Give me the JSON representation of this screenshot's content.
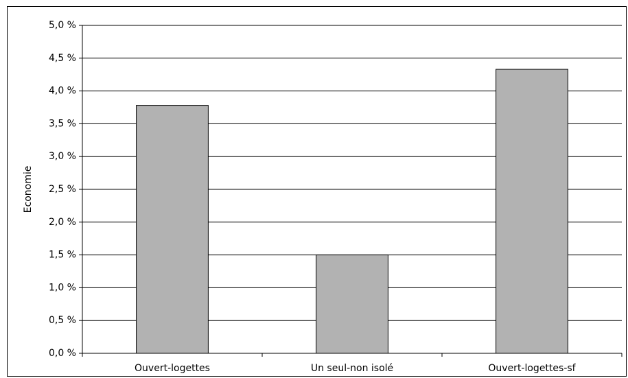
{
  "chart_data": {
    "type": "bar",
    "categories": [
      "Ouvert-logettes",
      "Un seul-non isolé",
      "Ouvert-logettes-sf"
    ],
    "values": [
      3.78,
      1.5,
      4.33
    ],
    "ylabel": "Economie",
    "xlabel": "",
    "ylim": [
      0,
      5
    ],
    "yticks": [
      0,
      0.5,
      1,
      1.5,
      2,
      2.5,
      3,
      3.5,
      4,
      4.5,
      5
    ],
    "ytick_labels": [
      "0,0 %",
      "0,5 %",
      "1,0 %",
      "1,5 %",
      "2,0 %",
      "2,5 %",
      "3,0 %",
      "3,5 %",
      "4,0 %",
      "4,5 %",
      "5,0 %"
    ],
    "grid": true,
    "colors": {
      "bar_fill": "#b2b2b2",
      "bar_stroke": "#000000",
      "grid": "#000000"
    }
  }
}
